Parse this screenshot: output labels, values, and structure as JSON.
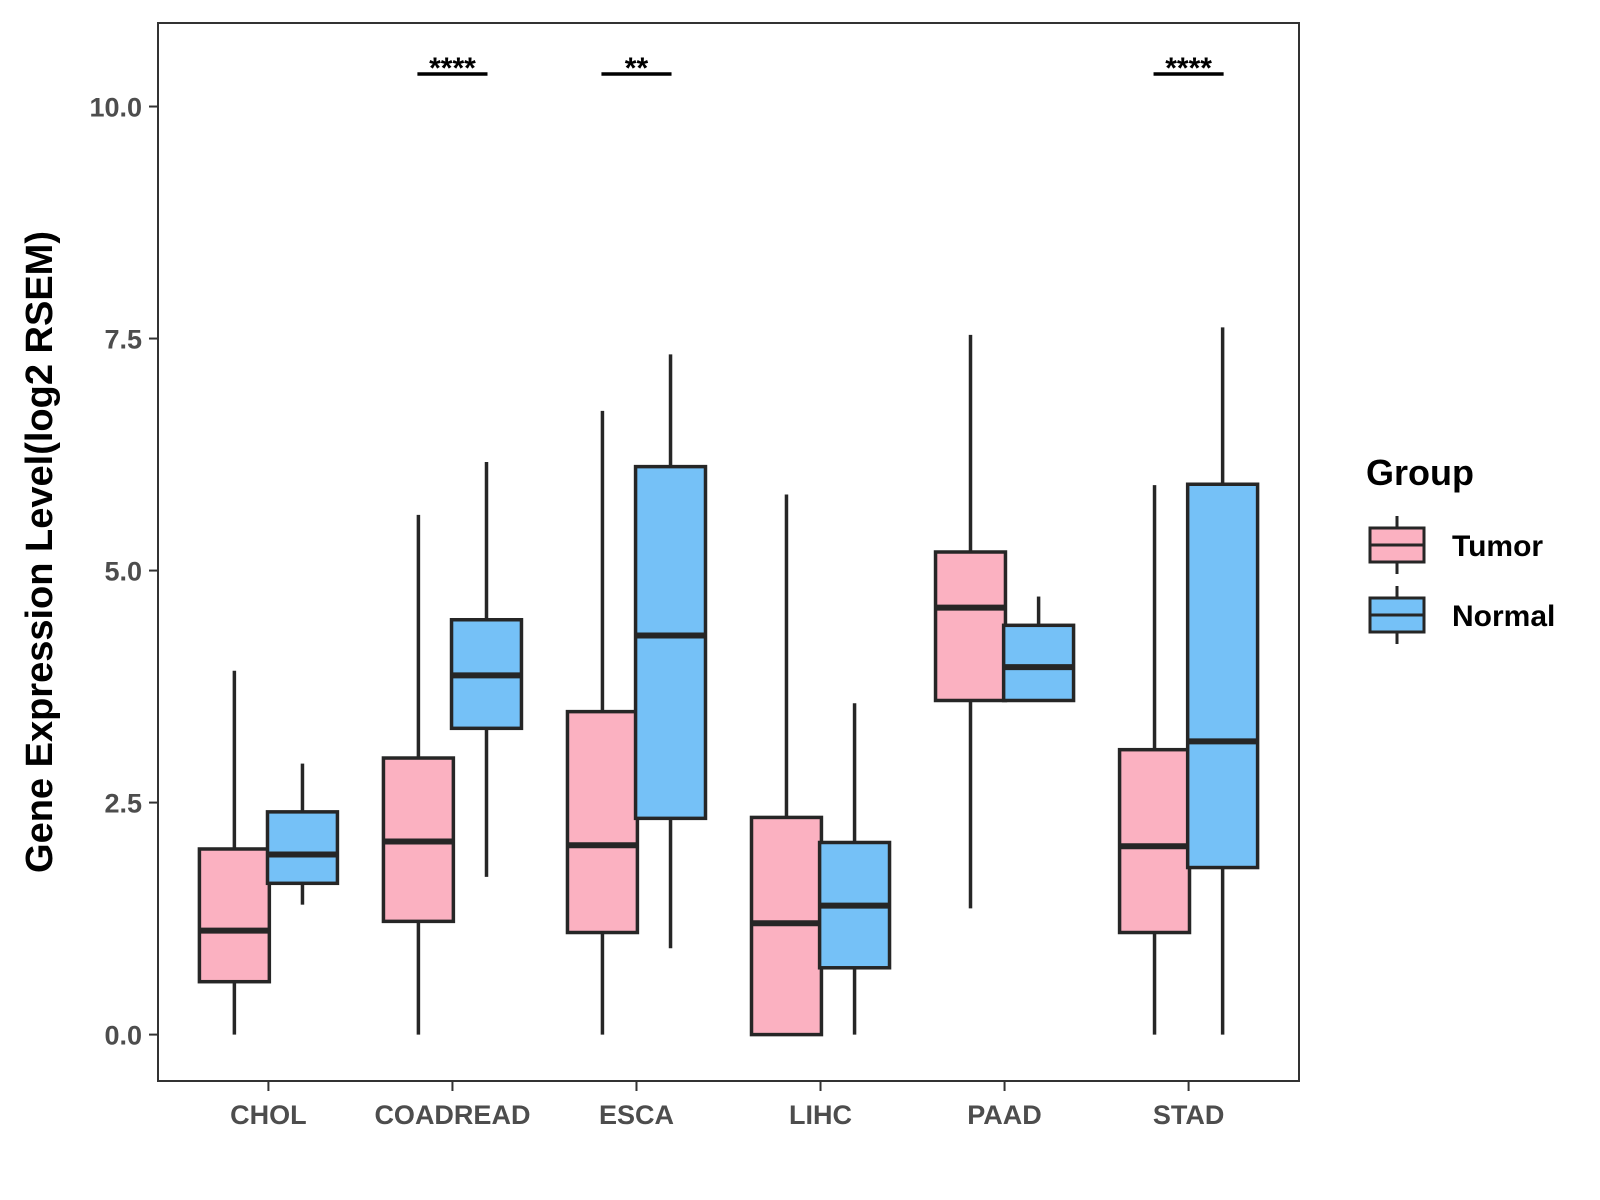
{
  "chart_data": {
    "type": "boxplot",
    "title": "",
    "xlabel": "",
    "ylabel": "Gene Expression Level(log2 RSEM)",
    "ylim": [
      -0.5,
      10.9
    ],
    "yticks": [
      "0.0",
      "2.5",
      "5.0",
      "7.5",
      "10.0"
    ],
    "ytick_values": [
      0,
      2.5,
      5,
      7.5,
      10
    ],
    "categories": [
      "CHOL",
      "COADREAD",
      "ESCA",
      "LIHC",
      "PAAD",
      "STAD"
    ],
    "legend": {
      "title": "Group",
      "position": "right",
      "items": [
        {
          "label": "Tumor",
          "color": "#FBB1C1"
        },
        {
          "label": "Normal",
          "color": "#75C1F7"
        }
      ]
    },
    "series": [
      {
        "name": "Tumor",
        "color": "#FBB1C1",
        "boxes": [
          {
            "min": 0.0,
            "q1": 0.57,
            "median": 1.12,
            "q3": 2.0,
            "max": 3.92
          },
          {
            "min": 0.0,
            "q1": 1.22,
            "median": 2.08,
            "q3": 2.98,
            "max": 5.6
          },
          {
            "min": 0.0,
            "q1": 1.1,
            "median": 2.04,
            "q3": 3.48,
            "max": 6.72
          },
          {
            "min": 0.0,
            "q1": 0.0,
            "median": 1.2,
            "q3": 2.34,
            "max": 5.82
          },
          {
            "min": 1.36,
            "q1": 3.6,
            "median": 4.6,
            "q3": 5.2,
            "max": 7.54
          },
          {
            "min": 0.0,
            "q1": 1.1,
            "median": 2.03,
            "q3": 3.07,
            "max": 5.92
          }
        ]
      },
      {
        "name": "Normal",
        "color": "#75C1F7",
        "boxes": [
          {
            "min": 1.4,
            "q1": 1.63,
            "median": 1.94,
            "q3": 2.4,
            "max": 2.92
          },
          {
            "min": 1.7,
            "q1": 3.3,
            "median": 3.87,
            "q3": 4.47,
            "max": 6.17
          },
          {
            "min": 0.93,
            "q1": 2.33,
            "median": 4.3,
            "q3": 6.12,
            "max": 7.33
          },
          {
            "min": 0.0,
            "q1": 0.72,
            "median": 1.39,
            "q3": 2.07,
            "max": 3.57
          },
          {
            "min": 3.6,
            "q1": 3.6,
            "median": 3.96,
            "q3": 4.41,
            "max": 4.72
          },
          {
            "min": 0.0,
            "q1": 1.8,
            "median": 3.16,
            "q3": 5.93,
            "max": 7.62
          }
        ]
      }
    ],
    "annotations": [
      {
        "category": "COADREAD",
        "label": "****"
      },
      {
        "category": "ESCA",
        "label": "**"
      },
      {
        "category": "STAD",
        "label": "****"
      }
    ],
    "grid": false
  }
}
